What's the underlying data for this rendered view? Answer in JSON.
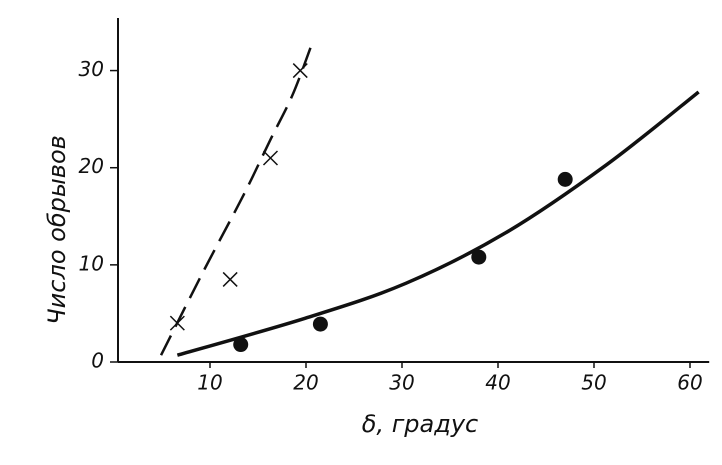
{
  "chart_data": {
    "type": "scatter",
    "xlabel": "δ, градус",
    "ylabel": "Число обрывов",
    "xlim": [
      0,
      62
    ],
    "ylim": [
      0,
      35
    ],
    "xticks": [
      10,
      20,
      30,
      40,
      50,
      60
    ],
    "yticks": [
      0,
      10,
      20,
      30
    ],
    "series": [
      {
        "kind": "line",
        "dash": true,
        "color": "#111111",
        "x": [
          4.9,
          9.4,
          13.5,
          16.3,
          18.6,
          20.6
        ],
        "values": [
          0.7,
          9.5,
          17.2,
          22.9,
          27.5,
          32.7
        ]
      },
      {
        "kind": "line",
        "dash": false,
        "color": "#111111",
        "x": [
          6.6,
          19.9,
          30.4,
          40.8,
          51.3,
          60.9
        ],
        "values": [
          0.7,
          4.5,
          8.1,
          13.3,
          20.3,
          27.8
        ]
      },
      {
        "kind": "points",
        "marker": "cross",
        "color": "#111111",
        "x": [
          6.6,
          12.1,
          16.3,
          19.4
        ],
        "values": [
          4.0,
          8.5,
          21.0,
          30.0
        ]
      },
      {
        "kind": "points",
        "marker": "dot",
        "color": "#111111",
        "x": [
          13.2,
          21.5,
          38.0,
          47.0
        ],
        "values": [
          1.8,
          3.9,
          10.8,
          18.8
        ]
      }
    ]
  }
}
